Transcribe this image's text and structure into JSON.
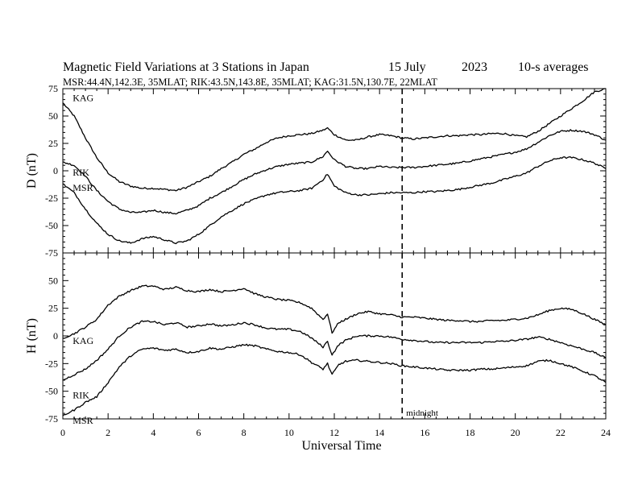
{
  "chart_data": {
    "type": "line",
    "title": "Magnetic Field Variations at 3 Stations in Japan",
    "date_day": "15 July",
    "date_year": "2023",
    "averaging": "10-s averages",
    "stations_line": "MSR:44.4N,142.3E, 35MLAT;  RIK:43.5N,143.8E, 35MLAT;  KAG:31.5N,130.7E, 22MLAT",
    "xlabel": "Universal Time",
    "xlim": [
      0,
      24
    ],
    "xticks": [
      0,
      2,
      4,
      6,
      8,
      10,
      12,
      14,
      16,
      18,
      20,
      22,
      24
    ],
    "marker": {
      "x": 15,
      "label": "midnight"
    },
    "panels": [
      {
        "ylabel": "D (nT)",
        "ylim": [
          -75,
          75
        ],
        "yticks": [
          75,
          50,
          25,
          0,
          -25,
          -50,
          -75
        ],
        "series": [
          {
            "name": "KAG",
            "label_pos": [
              0.4,
              68
            ],
            "x": [
              0,
              0.5,
              1,
              1.5,
              2,
              2.5,
              3,
              3.5,
              4,
              4.5,
              5,
              5.5,
              6,
              6.5,
              7,
              7.5,
              8,
              8.5,
              9,
              9.5,
              10,
              10.5,
              11,
              11.5,
              11.7,
              12,
              12.5,
              13,
              13.5,
              14,
              14.5,
              15,
              15.5,
              16,
              16.5,
              17,
              17.5,
              18,
              18.5,
              19,
              19.5,
              20,
              20.5,
              21,
              21.5,
              22,
              22.5,
              23,
              23.5,
              24
            ],
            "y": [
              62,
              50,
              30,
              12,
              -2,
              -10,
              -14,
              -16,
              -16,
              -17,
              -18,
              -15,
              -10,
              -5,
              2,
              8,
              15,
              20,
              26,
              30,
              32,
              33,
              34,
              37,
              39,
              33,
              28,
              28,
              31,
              33,
              32,
              30,
              29,
              30,
              31,
              32,
              32,
              33,
              33,
              34,
              34,
              32,
              31,
              36,
              43,
              50,
              57,
              64,
              72,
              75
            ]
          },
          {
            "name": "RIK",
            "label_pos": [
              0.4,
              0
            ],
            "x": [
              0,
              0.5,
              1,
              1.5,
              2,
              2.5,
              3,
              3.5,
              4,
              4.5,
              5,
              5.5,
              6,
              6.5,
              7,
              7.5,
              8,
              8.5,
              9,
              9.5,
              10,
              10.5,
              11,
              11.5,
              11.7,
              12,
              12.5,
              13,
              13.5,
              14,
              14.5,
              15,
              15.5,
              16,
              16.5,
              17,
              17.5,
              18,
              18.5,
              19,
              19.5,
              20,
              20.5,
              21,
              21.5,
              22,
              22.5,
              23,
              23.5,
              24
            ],
            "y": [
              8,
              5,
              -5,
              -18,
              -28,
              -35,
              -38,
              -38,
              -36,
              -38,
              -39,
              -36,
              -32,
              -25,
              -20,
              -14,
              -8,
              -3,
              1,
              4,
              6,
              7,
              8,
              13,
              18,
              10,
              4,
              2,
              2,
              4,
              3,
              3,
              3,
              4,
              5,
              6,
              7,
              9,
              11,
              13,
              15,
              17,
              20,
              26,
              32,
              36,
              37,
              36,
              33,
              28
            ]
          },
          {
            "name": "MSR",
            "label_pos": [
              0.4,
              -14
            ],
            "x": [
              0,
              0.5,
              1,
              1.5,
              2,
              2.5,
              3,
              3.5,
              4,
              4.5,
              5,
              5.5,
              6,
              6.5,
              7,
              7.5,
              8,
              8.5,
              9,
              9.5,
              10,
              10.5,
              11,
              11.5,
              11.7,
              12,
              12.5,
              13,
              13.5,
              14,
              14.5,
              15,
              15.5,
              16,
              16.5,
              17,
              17.5,
              18,
              18.5,
              19,
              19.5,
              20,
              20.5,
              21,
              21.5,
              22,
              22.5,
              23,
              23.5,
              24
            ],
            "y": [
              -12,
              -20,
              -35,
              -48,
              -58,
              -64,
              -66,
              -62,
              -60,
              -63,
              -66,
              -64,
              -58,
              -50,
              -42,
              -36,
              -30,
              -26,
              -22,
              -20,
              -19,
              -18,
              -16,
              -8,
              -3,
              -14,
              -20,
              -22,
              -22,
              -21,
              -20,
              -20,
              -20,
              -19,
              -19,
              -18,
              -17,
              -15,
              -13,
              -11,
              -8,
              -5,
              -2,
              4,
              9,
              12,
              12,
              10,
              7,
              2
            ]
          }
        ]
      },
      {
        "ylabel": "H (nT)",
        "ylim": [
          -75,
          75
        ],
        "yticks": [
          75,
          50,
          25,
          0,
          -25,
          -50,
          -75
        ],
        "series": [
          {
            "name": "KAG",
            "label_pos": [
              0.4,
              -3
            ],
            "x": [
              0,
              0.5,
              1,
              1.5,
              2,
              2.5,
              3,
              3.5,
              4,
              4.5,
              5,
              5.5,
              6,
              6.5,
              7,
              7.5,
              8,
              8.5,
              9,
              9.5,
              10,
              10.5,
              11,
              11.5,
              11.7,
              11.9,
              12.2,
              12.5,
              13,
              13.5,
              14,
              14.5,
              15,
              15.5,
              16,
              16.5,
              17,
              17.5,
              18,
              18.5,
              19,
              19.5,
              20,
              20.5,
              21,
              21.5,
              22,
              22.5,
              23,
              23.5,
              24
            ],
            "y": [
              -2,
              2,
              8,
              15,
              28,
              36,
              41,
              45,
              45,
              42,
              44,
              41,
              40,
              42,
              40,
              41,
              43,
              38,
              35,
              33,
              32,
              30,
              25,
              15,
              20,
              3,
              12,
              15,
              20,
              22,
              20,
              19,
              17,
              17,
              16,
              15,
              14,
              14,
              13,
              13,
              14,
              14,
              15,
              16,
              19,
              23,
              25,
              24,
              20,
              15,
              10
            ]
          },
          {
            "name": "RIK",
            "label_pos": [
              0.4,
              -52
            ],
            "x": [
              0,
              0.5,
              1,
              1.5,
              2,
              2.5,
              3,
              3.5,
              4,
              4.5,
              5,
              5.5,
              6,
              6.5,
              7,
              7.5,
              8,
              8.5,
              9,
              9.5,
              10,
              10.5,
              11,
              11.5,
              11.7,
              11.9,
              12.2,
              12.5,
              13,
              13.5,
              14,
              14.5,
              15,
              15.5,
              16,
              16.5,
              17,
              17.5,
              18,
              18.5,
              19,
              19.5,
              20,
              20.5,
              21,
              21.5,
              22,
              22.5,
              23,
              23.5,
              24
            ],
            "y": [
              -40,
              -35,
              -30,
              -22,
              -12,
              0,
              8,
              13,
              13,
              10,
              12,
              8,
              9,
              11,
              9,
              10,
              12,
              10,
              7,
              6,
              6,
              4,
              -2,
              -10,
              -5,
              -17,
              -8,
              -4,
              0,
              0,
              0,
              -1,
              -3,
              -4,
              -5,
              -6,
              -6,
              -6,
              -6,
              -6,
              -5,
              -5,
              -4,
              -3,
              -1,
              -3,
              -6,
              -9,
              -12,
              -15,
              -20
            ]
          },
          {
            "name": "MSR",
            "label_pos": [
              0.4,
              -75
            ],
            "x": [
              0,
              0.5,
              1,
              1.5,
              2,
              2.5,
              3,
              3.5,
              4,
              4.5,
              5,
              5.5,
              6,
              6.5,
              7,
              7.5,
              8,
              8.5,
              9,
              9.5,
              10,
              10.5,
              11,
              11.5,
              11.7,
              11.9,
              12.2,
              12.5,
              13,
              13.5,
              14,
              14.5,
              15,
              15.5,
              16,
              16.5,
              17,
              17.5,
              18,
              18.5,
              19,
              19.5,
              20,
              20.5,
              21,
              21.5,
              22,
              22.5,
              23,
              23.5,
              24
            ],
            "y": [
              -72,
              -67,
              -60,
              -55,
              -42,
              -28,
              -18,
              -12,
              -11,
              -13,
              -12,
              -15,
              -14,
              -11,
              -12,
              -10,
              -8,
              -9,
              -12,
              -14,
              -15,
              -17,
              -24,
              -30,
              -25,
              -35,
              -26,
              -23,
              -22,
              -23,
              -24,
              -25,
              -27,
              -28,
              -29,
              -30,
              -31,
              -31,
              -31,
              -30,
              -30,
              -29,
              -28,
              -27,
              -23,
              -22,
              -25,
              -28,
              -32,
              -36,
              -42
            ]
          }
        ]
      }
    ]
  }
}
